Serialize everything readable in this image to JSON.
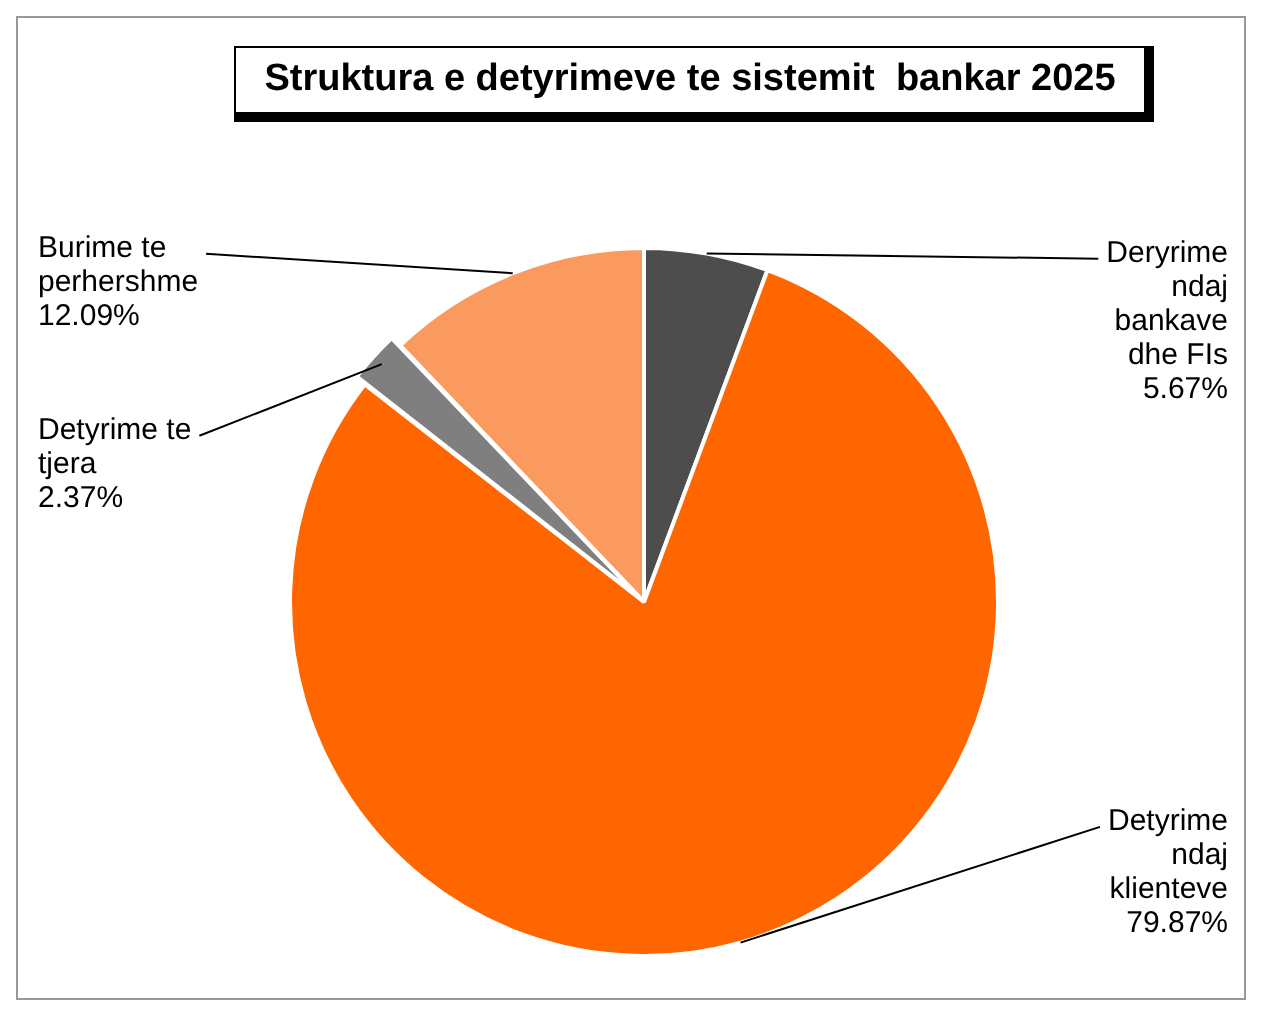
{
  "chart_data": {
    "type": "pie",
    "title": "Struktura e detyrimeve te sistemit  bankar 2025",
    "categories": [
      "Deryrime ndaj bankave dhe FIs",
      "Detyrime ndaj klienteve",
      "Detyrime te tjera",
      "Burime te perhershme"
    ],
    "values": [
      5.67,
      79.87,
      2.37,
      12.09
    ],
    "colors": [
      "#4d4d4d",
      "#ff6600",
      "#7f7f7f",
      "#fb9a5e"
    ],
    "value_labels": [
      "5.67%",
      "79.87%",
      "2.37%",
      "12.09%"
    ],
    "legend": false
  }
}
